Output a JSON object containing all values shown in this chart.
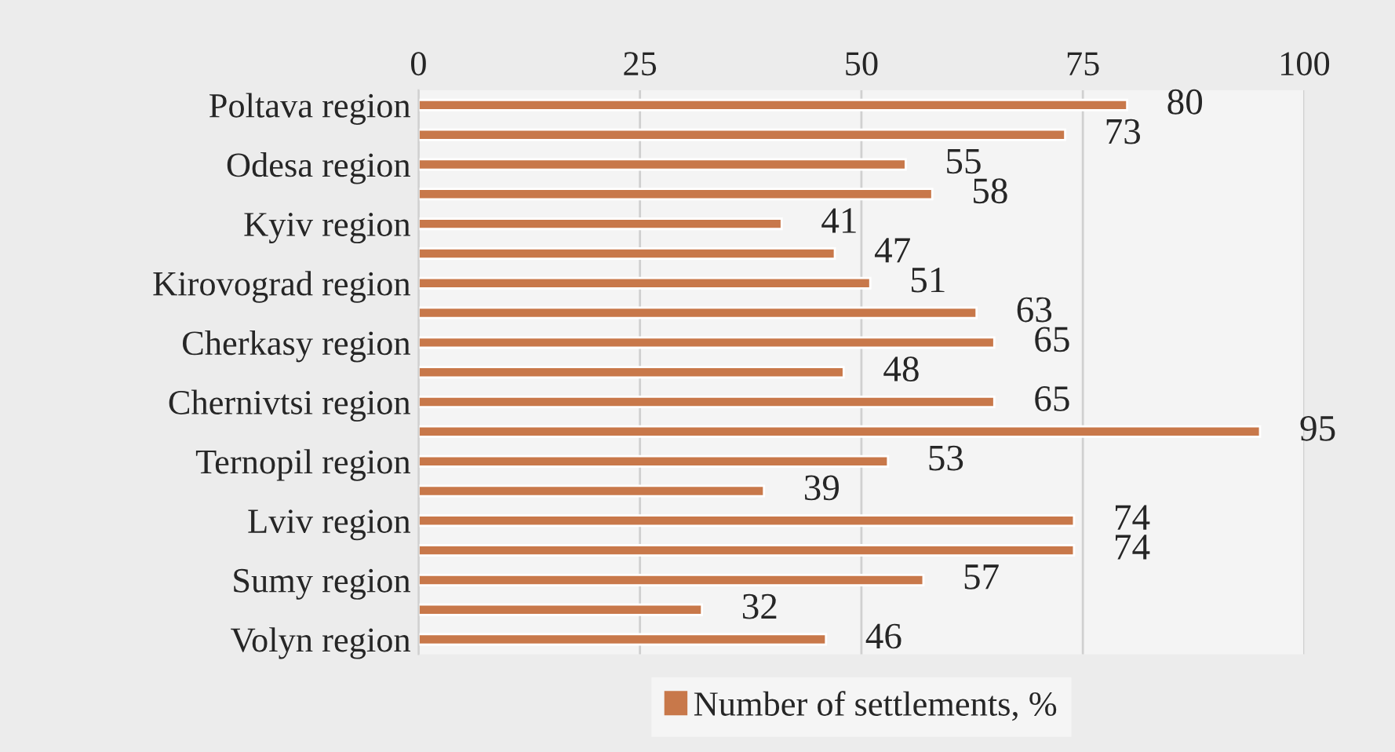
{
  "chart_data": {
    "type": "bar",
    "orientation": "horizontal",
    "categories": [
      "Poltava region",
      null,
      "Odesa region",
      null,
      "Kyiv region",
      null,
      "Kirovograd region",
      null,
      "Cherkasy region",
      null,
      "Chernivtsi region",
      null,
      "Ternopil region",
      null,
      "Lviv region",
      null,
      "Sumy region",
      null,
      "Volyn region"
    ],
    "series": [
      {
        "name": "Number of settlements, %",
        "color": "#c8784a",
        "values": [
          80,
          73,
          55,
          58,
          41,
          47,
          51,
          63,
          65,
          48,
          65,
          95,
          53,
          39,
          74,
          74,
          57,
          32,
          46
        ]
      }
    ],
    "xlim": [
      0,
      100
    ],
    "xticks": [
      0,
      25,
      50,
      75,
      100
    ],
    "grid": "x",
    "data_labels": true,
    "legend": "bottom"
  }
}
